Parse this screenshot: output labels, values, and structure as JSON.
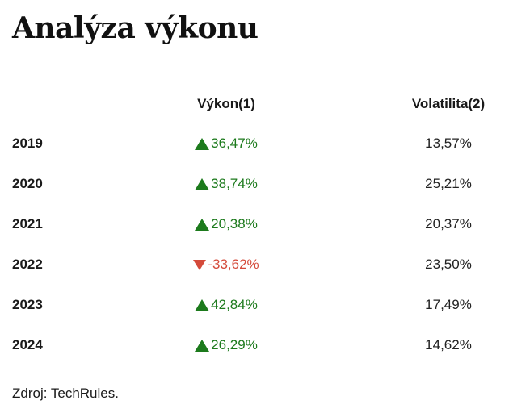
{
  "title": "Analýza výkonu",
  "columns": {
    "year": "",
    "performance": "Výkon(1)",
    "volatility": "Volatilita(2)"
  },
  "colors": {
    "positive": "#1c7a1c",
    "negative": "#d44a3a"
  },
  "rows": [
    {
      "year": "2019",
      "performance": "36,47%",
      "direction": "up",
      "volatility": "13,57%"
    },
    {
      "year": "2020",
      "performance": "38,74%",
      "direction": "up",
      "volatility": "25,21%"
    },
    {
      "year": "2021",
      "performance": "20,38%",
      "direction": "up",
      "volatility": "20,37%"
    },
    {
      "year": "2022",
      "performance": "-33,62%",
      "direction": "down",
      "volatility": "23,50%"
    },
    {
      "year": "2023",
      "performance": "42,84%",
      "direction": "up",
      "volatility": "17,49%"
    },
    {
      "year": "2024",
      "performance": "26,29%",
      "direction": "up",
      "volatility": "14,62%"
    }
  ],
  "source": "Zdroj: TechRules."
}
